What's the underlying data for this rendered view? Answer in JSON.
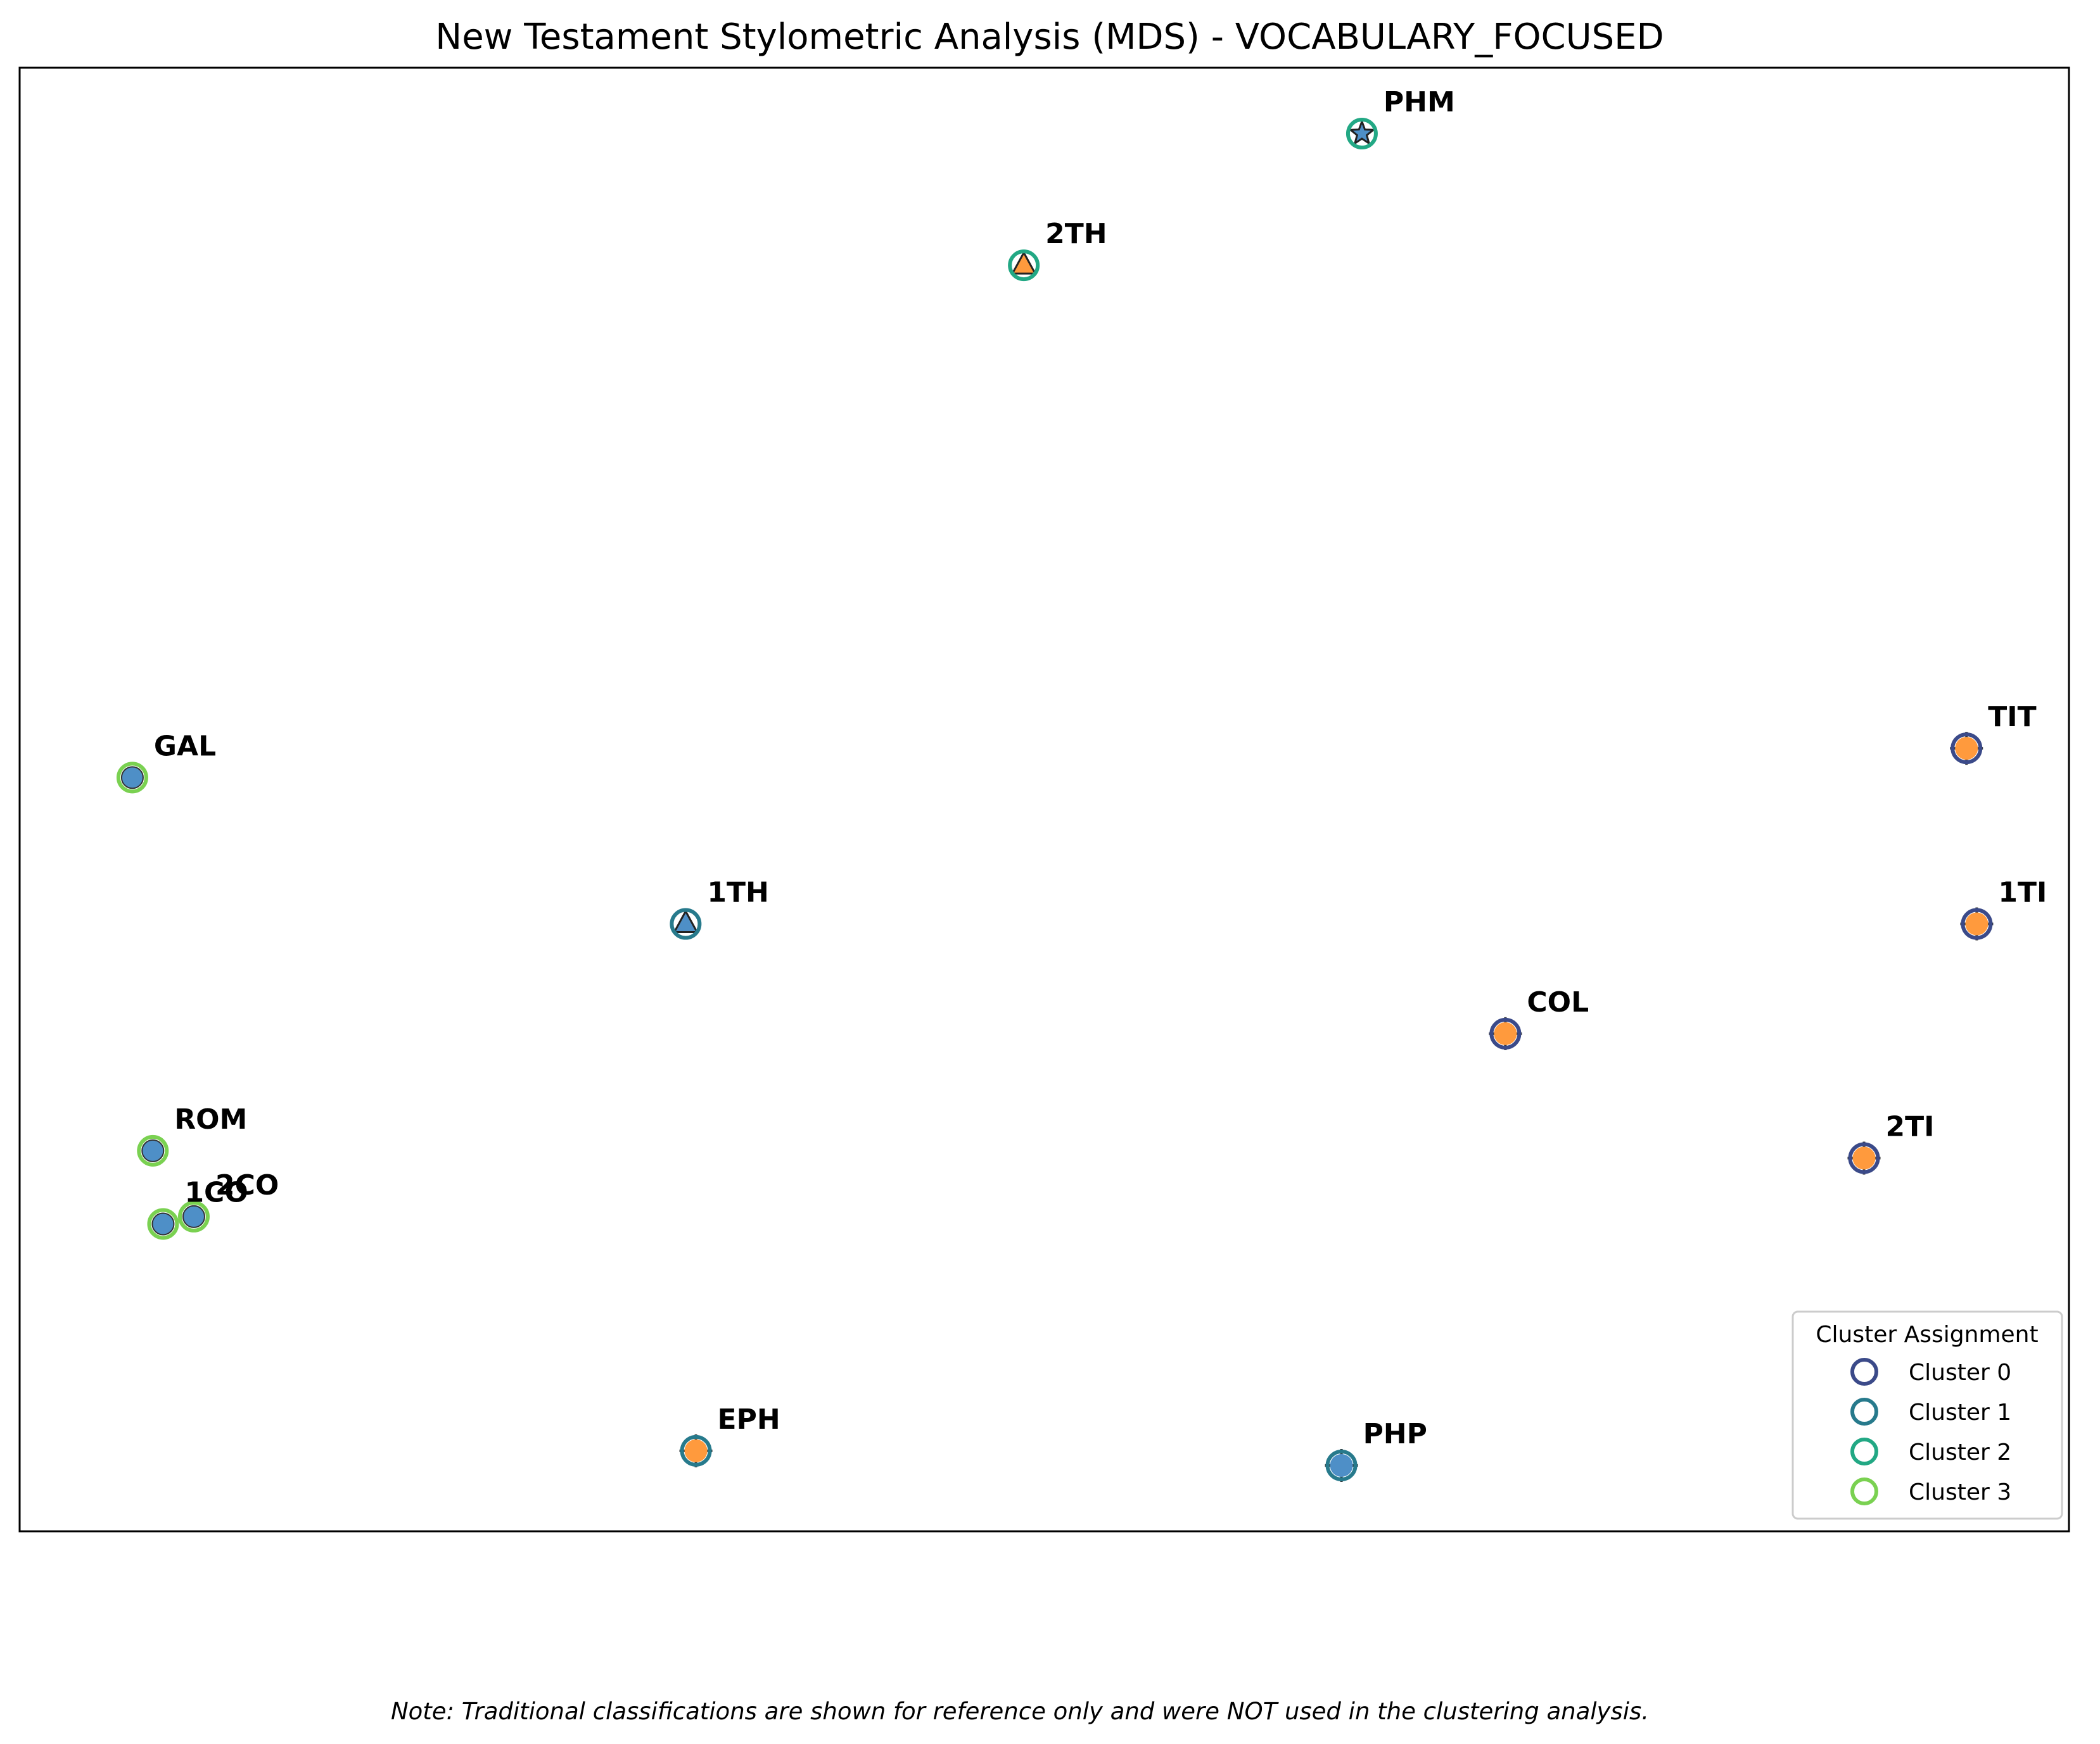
{
  "chart_data": {
    "type": "scatter",
    "title": "New Testament Stylometric Analysis (MDS) - VOCABULARY_FOCUSED",
    "xlabel": "",
    "ylabel": "",
    "axes_visible": false,
    "grid": false,
    "xlim": [
      -1.0,
      1.0
    ],
    "ylim": [
      -1.0,
      1.0
    ],
    "legend": {
      "title": "Cluster Assignment",
      "placement": "lower-right",
      "entries": [
        {
          "label": "Cluster 0",
          "color": "#3b4a89"
        },
        {
          "label": "Cluster 1",
          "color": "#277a8c"
        },
        {
          "label": "Cluster 2",
          "color": "#22a884"
        },
        {
          "label": "Cluster 3",
          "color": "#7ad151"
        }
      ]
    },
    "fill_colors": {
      "blue": "#4e8fc7",
      "orange": "#ff9a3d"
    },
    "points": [
      {
        "label": "PHM",
        "x": 0.31,
        "y": 0.91,
        "cluster": 2,
        "fill": "blue",
        "marker": "star"
      },
      {
        "label": "2TH",
        "x": -0.02,
        "y": 0.73,
        "cluster": 2,
        "fill": "orange",
        "marker": "triangle"
      },
      {
        "label": "TIT",
        "x": 0.9,
        "y": 0.07,
        "cluster": 0,
        "fill": "orange",
        "marker": "plus"
      },
      {
        "label": "GAL",
        "x": -0.89,
        "y": 0.03,
        "cluster": 3,
        "fill": "blue",
        "marker": "circle"
      },
      {
        "label": "1TH",
        "x": -0.35,
        "y": -0.17,
        "cluster": 1,
        "fill": "blue",
        "marker": "triangle"
      },
      {
        "label": "1TI",
        "x": 0.91,
        "y": -0.17,
        "cluster": 0,
        "fill": "orange",
        "marker": "plus"
      },
      {
        "label": "COL",
        "x": 0.45,
        "y": -0.32,
        "cluster": 0,
        "fill": "orange",
        "marker": "plus"
      },
      {
        "label": "2TI",
        "x": 0.8,
        "y": -0.49,
        "cluster": 0,
        "fill": "orange",
        "marker": "plus"
      },
      {
        "label": "ROM",
        "x": -0.87,
        "y": -0.48,
        "cluster": 3,
        "fill": "blue",
        "marker": "circle"
      },
      {
        "label": "2CO",
        "x": -0.83,
        "y": -0.57,
        "cluster": 3,
        "fill": "blue",
        "marker": "circle"
      },
      {
        "label": "1CO",
        "x": -0.86,
        "y": -0.58,
        "cluster": 3,
        "fill": "blue",
        "marker": "circle"
      },
      {
        "label": "EPH",
        "x": -0.34,
        "y": -0.89,
        "cluster": 1,
        "fill": "orange",
        "marker": "plus"
      },
      {
        "label": "PHP",
        "x": 0.29,
        "y": -0.91,
        "cluster": 1,
        "fill": "blue",
        "marker": "plus"
      }
    ]
  },
  "note": "Note: Traditional classifications are shown for reference only and were NOT used in the clustering analysis."
}
